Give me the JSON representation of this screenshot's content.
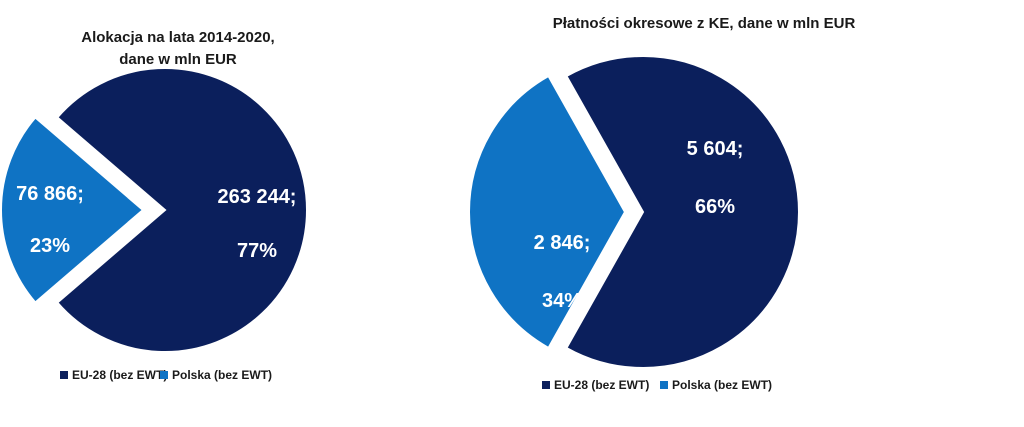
{
  "chart_data": [
    {
      "type": "pie",
      "title_lines": [
        "Alokacja  na lata 2014-2020,",
        "dane w mln EUR"
      ],
      "slices": [
        {
          "name": "EU-28 (bez EWT)",
          "value": 263244,
          "value_label": "263 244;",
          "percent_label": "77%",
          "color": "#0b1f5c"
        },
        {
          "name": "Polska (bez EWT)",
          "value": 76866,
          "value_label": "76 866;",
          "percent_label": "23%",
          "color": "#0f73c4"
        }
      ],
      "legend": [
        "EU-28 (bez EWT)",
        "Polska (bez EWT)"
      ],
      "legend_position": "bottom",
      "exploded_slice": "Polska (bez EWT)"
    },
    {
      "type": "pie",
      "title_lines": [
        "Płatności okresowe z KE, dane w mln EUR"
      ],
      "slices": [
        {
          "name": "EU-28 (bez EWT)",
          "value": 5604,
          "value_label": "5 604;",
          "percent_label": "66%",
          "color": "#0b1f5c"
        },
        {
          "name": "Polska (bez EWT)",
          "value": 2846,
          "value_label": "2 846;",
          "percent_label": "34%",
          "color": "#0f73c4"
        }
      ],
      "legend": [
        "EU-28 (bez EWT)",
        "Polska (bez EWT)"
      ],
      "legend_position": "bottom",
      "exploded_slice": "Polska (bez EWT)"
    }
  ]
}
